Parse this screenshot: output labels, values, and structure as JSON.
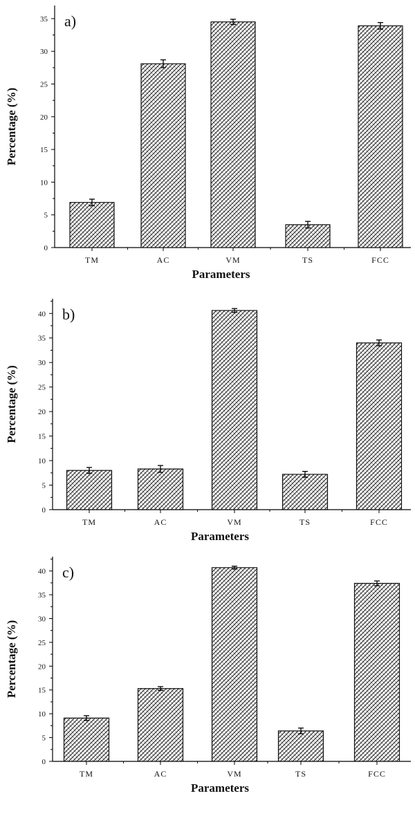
{
  "figure": {
    "panels": [
      "a)",
      "b)",
      "c)"
    ]
  },
  "chart_data": [
    {
      "type": "bar",
      "panel_label": "a)",
      "categories": [
        "TM",
        "AC",
        "VM",
        "TS",
        "FCC"
      ],
      "values": [
        6.9,
        28.1,
        34.5,
        3.5,
        33.9
      ],
      "errors": [
        0.5,
        0.6,
        0.4,
        0.5,
        0.5
      ],
      "xlabel": "Parameters",
      "ylabel": "Percentage (%)",
      "ylim": [
        0,
        37
      ],
      "yticks": [
        0,
        5,
        10,
        15,
        20,
        25,
        30,
        35
      ],
      "grid": false
    },
    {
      "type": "bar",
      "panel_label": "b)",
      "categories": [
        "TM",
        "AC",
        "VM",
        "TS",
        "FCC"
      ],
      "values": [
        8.0,
        8.3,
        40.6,
        7.2,
        34.0
      ],
      "errors": [
        0.6,
        0.7,
        0.4,
        0.6,
        0.6
      ],
      "xlabel": "Parameters",
      "ylabel": "Percentage (%)",
      "ylim": [
        0,
        43
      ],
      "yticks": [
        0,
        5,
        10,
        15,
        20,
        25,
        30,
        35,
        40
      ],
      "grid": false
    },
    {
      "type": "bar",
      "panel_label": "c)",
      "categories": [
        "TM",
        "AC",
        "VM",
        "TS",
        "FCC"
      ],
      "values": [
        9.1,
        15.3,
        40.7,
        6.4,
        37.4
      ],
      "errors": [
        0.5,
        0.4,
        0.3,
        0.6,
        0.5
      ],
      "xlabel": "Parameters",
      "ylabel": "Percentage (%)",
      "ylim": [
        0,
        43
      ],
      "yticks": [
        0,
        5,
        10,
        15,
        20,
        25,
        30,
        35,
        40
      ],
      "grid": false
    }
  ]
}
